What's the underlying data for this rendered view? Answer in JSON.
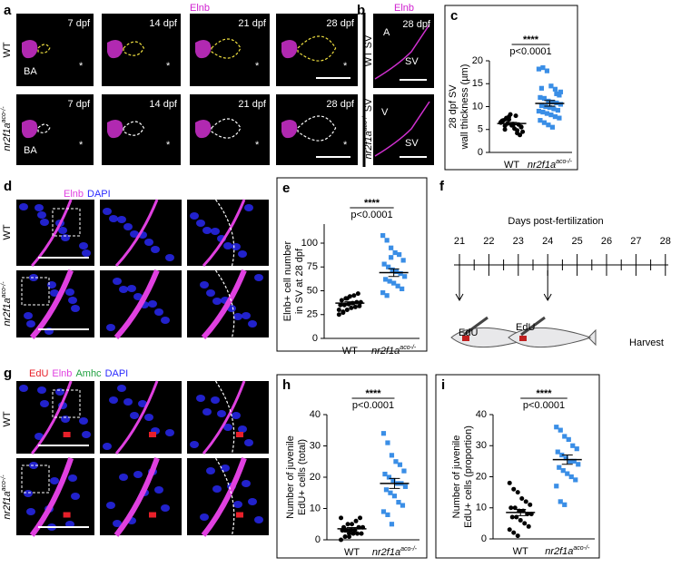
{
  "genotype": {
    "label": "nr2f1a",
    "superscript": "aco-/-"
  },
  "wt": "WT",
  "panel_a": {
    "letter": "a",
    "stain": "Elnb",
    "stages": [
      "7 dpf",
      "14 dpf",
      "21 dpf",
      "28 dpf"
    ],
    "region": "BA",
    "mark": "*"
  },
  "panel_b": {
    "letter": "b",
    "stain": "Elnb",
    "stage": "28 dpf",
    "rows": [
      "WT SV",
      {
        "label": "nr2f1a",
        "superscript": "aco-/-",
        "after": " SV"
      }
    ],
    "labels": [
      "A",
      "SV",
      "V",
      "SV"
    ]
  },
  "panel_d": {
    "letter": "d",
    "stains": [
      {
        "text": "Elnb",
        "color": "#e040e0"
      },
      {
        "text": "DAPI",
        "color": "#2b2bff"
      }
    ]
  },
  "panel_f": {
    "letter": "f",
    "axis_title": "Days post-fertilization",
    "days": [
      21,
      22,
      23,
      24,
      25,
      26,
      27,
      28
    ],
    "pulses": [
      "EdU",
      "EdU"
    ],
    "end": "Harvest"
  },
  "panel_g": {
    "letter": "g",
    "stains": [
      {
        "text": "EdU",
        "color": "#e8202a"
      },
      {
        "text": "Elnb",
        "color": "#e040e0"
      },
      {
        "text": "Amhc",
        "color": "#20a040"
      },
      {
        "text": "DAPI",
        "color": "#2b2bff"
      }
    ]
  },
  "chart_data": [
    {
      "type": "dot",
      "letter": "c",
      "ylabel": [
        "28 dpf SV",
        "wall thickness (µm)"
      ],
      "categories": [
        "WT",
        {
          "label": "nr2f1a",
          "superscript": "aco-/-"
        }
      ],
      "values": [
        [
          6.5,
          5.8,
          7.2,
          6.0,
          4.8,
          5.5,
          6.8,
          7.5,
          8.3,
          5.2,
          6.1,
          4.5,
          7.0,
          6.3,
          5.9,
          8.0,
          3.8,
          6.6,
          5.0,
          7.8,
          6.2,
          4.2,
          5.6,
          6.9,
          7.3
        ],
        [
          18.2,
          18.5,
          17.8,
          14.5,
          13.8,
          12.5,
          12.0,
          11.8,
          11.2,
          11.0,
          10.8,
          10.5,
          10.2,
          10.0,
          9.8,
          9.5,
          9.2,
          9.0,
          8.8,
          8.5,
          8.2,
          7.8,
          7.5,
          7.0,
          6.5,
          6.0,
          5.5,
          12.8,
          13.2,
          14.0
        ]
      ],
      "mean": [
        6.3,
        10.7
      ],
      "sem": [
        0.25,
        0.6
      ],
      "colors": [
        "#000000",
        "#3a8ee6"
      ],
      "markers": [
        "circle",
        "square"
      ],
      "significance": "****",
      "p_value": "p<0.0001",
      "ylim": [
        0,
        20
      ],
      "yticks": [
        0,
        5,
        10,
        15,
        20
      ]
    },
    {
      "type": "dot",
      "letter": "e",
      "ylabel": [
        "Elnb+ cell number",
        "in SV at 28 dpf"
      ],
      "categories": [
        "WT",
        {
          "label": "nr2f1a",
          "superscript": "aco-/-"
        }
      ],
      "values": [
        [
          25,
          28,
          30,
          32,
          33,
          34,
          35,
          35,
          36,
          37,
          38,
          38,
          40,
          42,
          44,
          45,
          47,
          30,
          27,
          42
        ],
        [
          108,
          103,
          95,
          90,
          88,
          82,
          78,
          75,
          72,
          70,
          68,
          65,
          62,
          60,
          58,
          55,
          52,
          48,
          45,
          85
        ]
      ],
      "mean": [
        37,
        69
      ],
      "sem": [
        1.5,
        4
      ],
      "colors": [
        "#000000",
        "#3a8ee6"
      ],
      "markers": [
        "circle",
        "square"
      ],
      "significance": "****",
      "p_value": "p<0.0001",
      "ylim": [
        0,
        120
      ],
      "yticks": [
        0,
        25,
        50,
        75,
        100
      ]
    },
    {
      "type": "dot",
      "letter": "h",
      "ylabel": [
        "Number of juvenile",
        "EdU+ cells (total)"
      ],
      "categories": [
        "WT",
        {
          "label": "nr2f1a",
          "superscript": "aco-/-"
        }
      ],
      "values": [
        [
          0,
          1,
          1,
          2,
          2,
          2,
          3,
          3,
          3,
          3,
          4,
          4,
          4,
          5,
          5,
          6,
          7,
          7,
          3,
          2
        ],
        [
          34,
          31,
          27,
          25,
          24,
          22,
          21,
          20,
          19,
          18,
          18,
          17,
          16,
          15,
          14,
          12,
          11,
          9,
          8,
          5
        ]
      ],
      "mean": [
        3.5,
        18
      ],
      "sem": [
        0.4,
        1.6
      ],
      "colors": [
        "#000000",
        "#3a8ee6"
      ],
      "markers": [
        "circle",
        "square"
      ],
      "significance": "****",
      "p_value": "p<0.0001",
      "ylim": [
        0,
        40
      ],
      "yticks": [
        0,
        10,
        20,
        30,
        40
      ]
    },
    {
      "type": "dot",
      "letter": "i",
      "ylabel": [
        "Number of juvenile",
        "EdU+ cells (proportion)"
      ],
      "categories": [
        "WT",
        {
          "label": "nr2f1a",
          "superscript": "aco-/-"
        }
      ],
      "values": [
        [
          18,
          16,
          15,
          13,
          12,
          11,
          10,
          10,
          9,
          9,
          8,
          8,
          7,
          7,
          6,
          5,
          4,
          3,
          2,
          1
        ],
        [
          36,
          35,
          33,
          32,
          30,
          29,
          28,
          27,
          26,
          25,
          25,
          24,
          23,
          22,
          21,
          20,
          19,
          17,
          12,
          11
        ]
      ],
      "mean": [
        8.5,
        25.5
      ],
      "sem": [
        1,
        1.5
      ],
      "colors": [
        "#000000",
        "#3a8ee6"
      ],
      "markers": [
        "circle",
        "square"
      ],
      "significance": "****",
      "p_value": "p<0.0001",
      "ylim": [
        0,
        40
      ],
      "yticks": [
        0,
        10,
        20,
        30,
        40
      ]
    }
  ]
}
